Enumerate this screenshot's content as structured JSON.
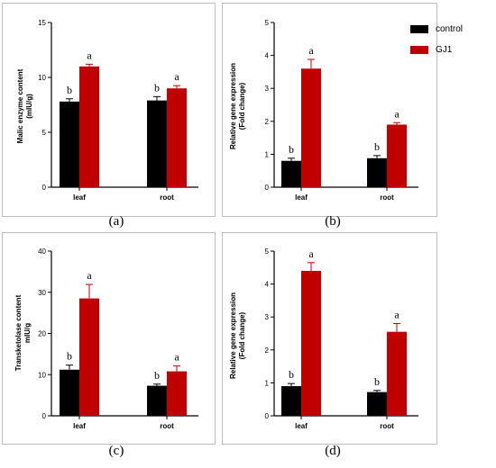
{
  "legend": [
    {
      "label": "control",
      "color": "#000000"
    },
    {
      "label": "GJ1",
      "color": "#c00000"
    }
  ],
  "chart_data": [
    {
      "type": "bar",
      "panel": "(a)",
      "ylabel": "Malic enzyme content\n(mIU/g)",
      "categories": [
        "leaf",
        "root"
      ],
      "ylim": [
        0,
        15
      ],
      "yticks": [
        0,
        5,
        10,
        15
      ],
      "series": [
        {
          "name": "control",
          "values": [
            7.8,
            7.9
          ],
          "errors": [
            0.25,
            0.35
          ],
          "letters": [
            "b",
            "b"
          ],
          "color": "#000000"
        },
        {
          "name": "GJ1",
          "values": [
            11.0,
            9.0
          ],
          "errors": [
            0.2,
            0.25
          ],
          "letters": [
            "a",
            "a"
          ],
          "color": "#c00000"
        }
      ]
    },
    {
      "type": "bar",
      "panel": "(b)",
      "ylabel": "Relative gene expression\n(Fold change)",
      "categories": [
        "leaf",
        "root"
      ],
      "ylim": [
        0,
        5
      ],
      "yticks": [
        0,
        1,
        2,
        3,
        4,
        5
      ],
      "series": [
        {
          "name": "control",
          "values": [
            0.8,
            0.88
          ],
          "errors": [
            0.08,
            0.08
          ],
          "letters": [
            "b",
            "b"
          ],
          "color": "#000000"
        },
        {
          "name": "GJ1",
          "values": [
            3.6,
            1.9
          ],
          "errors": [
            0.28,
            0.06
          ],
          "letters": [
            "a",
            "a"
          ],
          "color": "#c00000"
        }
      ]
    },
    {
      "type": "bar",
      "panel": "(c)",
      "ylabel": "Transketolase content\nmIU/g",
      "categories": [
        "leaf",
        "root"
      ],
      "ylim": [
        0,
        40
      ],
      "yticks": [
        0,
        10,
        20,
        30,
        40
      ],
      "series": [
        {
          "name": "control",
          "values": [
            11.2,
            7.3
          ],
          "errors": [
            1.1,
            0.4
          ],
          "letters": [
            "b",
            "b"
          ],
          "color": "#000000"
        },
        {
          "name": "GJ1",
          "values": [
            28.5,
            10.8
          ],
          "errors": [
            3.4,
            1.3
          ],
          "letters": [
            "a",
            "a"
          ],
          "color": "#c00000"
        }
      ]
    },
    {
      "type": "bar",
      "panel": "(d)",
      "ylabel": "Relative gene expression\n(Fold change)",
      "categories": [
        "leaf",
        "root"
      ],
      "ylim": [
        0,
        5
      ],
      "yticks": [
        0,
        1,
        2,
        3,
        4,
        5
      ],
      "series": [
        {
          "name": "control",
          "values": [
            0.9,
            0.72
          ],
          "errors": [
            0.08,
            0.05
          ],
          "letters": [
            "b",
            "b"
          ],
          "color": "#000000"
        },
        {
          "name": "GJ1",
          "values": [
            4.4,
            2.55
          ],
          "errors": [
            0.25,
            0.25
          ],
          "letters": [
            "a",
            "a"
          ],
          "color": "#c00000"
        }
      ]
    }
  ]
}
